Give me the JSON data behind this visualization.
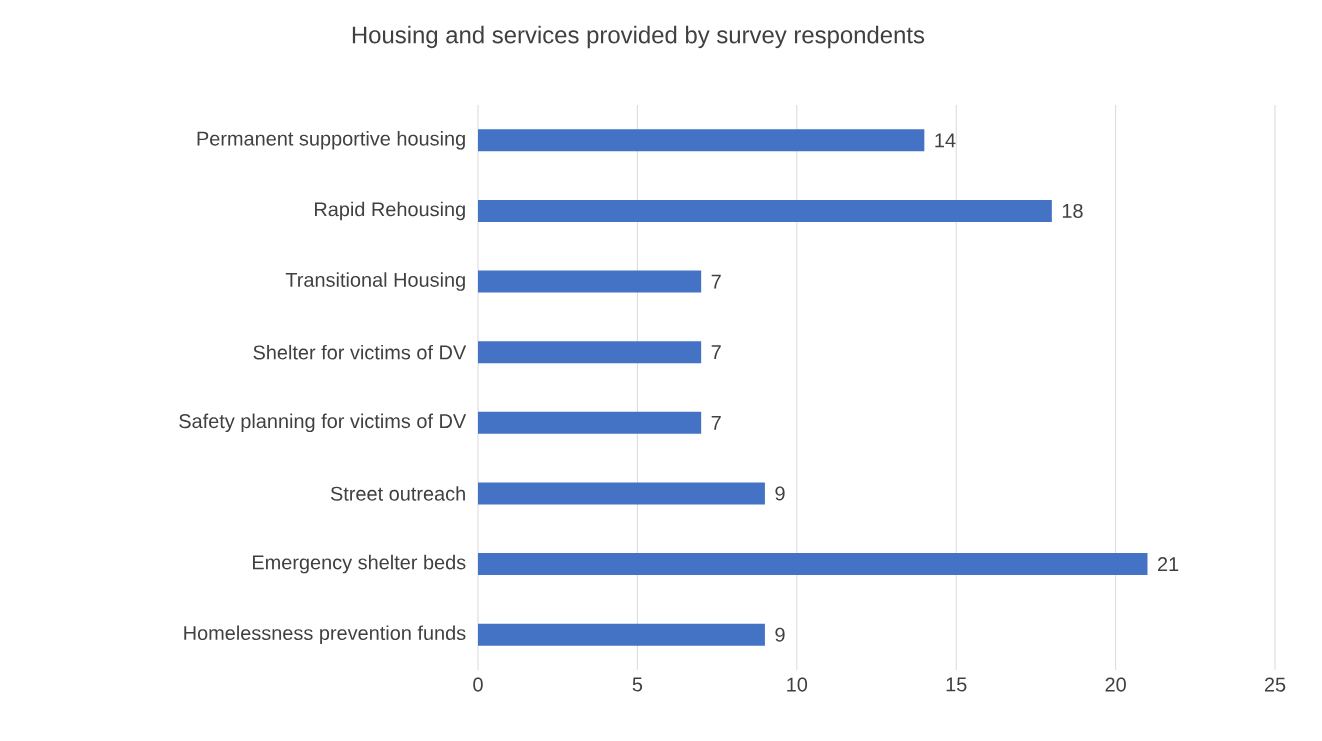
{
  "chart_data": {
    "type": "bar",
    "orientation": "horizontal",
    "title": "Housing and services provided by survey respondents",
    "categories": [
      "Permanent supportive housing",
      "Rapid Rehousing",
      "Transitional Housing",
      "Shelter for victims of DV",
      "Safety planning for victims of DV",
      "Street outreach",
      "Emergency shelter beds",
      "Homelessness prevention funds"
    ],
    "values": [
      14,
      18,
      7,
      7,
      7,
      9,
      21,
      9
    ],
    "color": "#4472c4",
    "xlim": [
      0,
      25
    ],
    "xticks": [
      0,
      5,
      10,
      15,
      20,
      25
    ],
    "grid": "x",
    "data_labels": true
  }
}
